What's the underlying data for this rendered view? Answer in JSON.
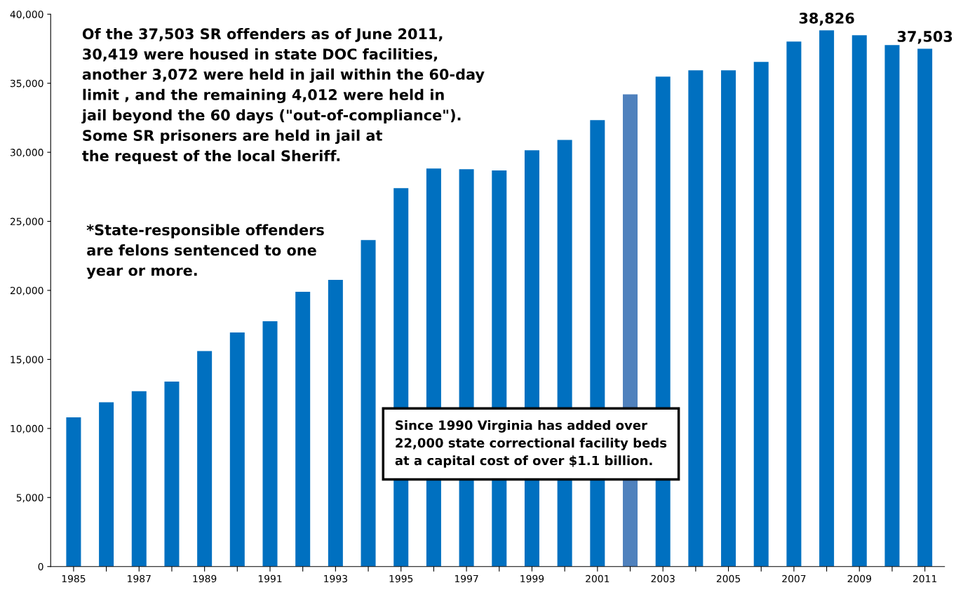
{
  "chart_data": {
    "type": "bar",
    "categories": [
      "1985",
      null,
      "1987",
      null,
      "1989",
      null,
      "1991",
      null,
      "1993",
      null,
      "1995",
      null,
      "1997",
      null,
      "1999",
      null,
      "2001",
      null,
      "2003",
      null,
      "2005",
      null,
      "2007",
      null,
      "2009",
      null,
      "2011"
    ],
    "values": [
      10800,
      11900,
      12700,
      13400,
      15600,
      16950,
      17770,
      19900,
      20760,
      23650,
      27400,
      28830,
      28780,
      28680,
      30150,
      30900,
      32330,
      34200,
      35480,
      35940,
      35940,
      36550,
      38020,
      38826,
      38480,
      37770,
      37503
    ],
    "colors": [
      "#0070c0",
      "#0070c0",
      "#0070c0",
      "#0070c0",
      "#0070c0",
      "#0070c0",
      "#0070c0",
      "#0070c0",
      "#0070c0",
      "#0070c0",
      "#0070c0",
      "#0070c0",
      "#0070c0",
      "#0070c0",
      "#0070c0",
      "#0070c0",
      "#0070c0",
      "#4f81bd",
      "#0070c0",
      "#0070c0",
      "#0070c0",
      "#0070c0",
      "#0070c0",
      "#0070c0",
      "#0070c0",
      "#0070c0",
      "#0070c0"
    ],
    "value_labels": [
      null,
      null,
      null,
      null,
      null,
      null,
      null,
      null,
      null,
      null,
      null,
      null,
      null,
      null,
      null,
      null,
      null,
      null,
      null,
      null,
      null,
      null,
      null,
      "38,826",
      null,
      null,
      "37,503"
    ],
    "ylim": [
      0,
      40000
    ],
    "yticks": [
      0,
      {
        "value": 5000,
        "label": "5,000"
      },
      {
        "value": 10000,
        "label": "10,000"
      },
      {
        "value": 15000,
        "label": "15,000"
      },
      {
        "value": 20000,
        "label": "20,000"
      },
      {
        "value": 25000,
        "label": "25,000"
      },
      {
        "value": 30000,
        "label": "30,000"
      },
      {
        "value": 35000,
        "label": "35,000"
      },
      {
        "value": 40000,
        "label": "40,000"
      }
    ],
    "grid": false,
    "annotations": [
      "Of the 37,503 SR offenders as of June 2011,\n30,419 were housed in state DOC facilities,\nanother 3,072 were held in jail within the 60-day\nlimit , and the remaining 4,012 were held in\njail beyond the 60 days (\"out-of-compliance\").\nSome SR prisoners are held in jail at\nthe request of the local Sheriff.",
      "*State-responsible offenders\nare felons sentenced to one\nyear or more.",
      "Since 1990 Virginia has added over\n22,000 state correctional facility beds\nat a capital cost of over $1.1 billion."
    ]
  }
}
